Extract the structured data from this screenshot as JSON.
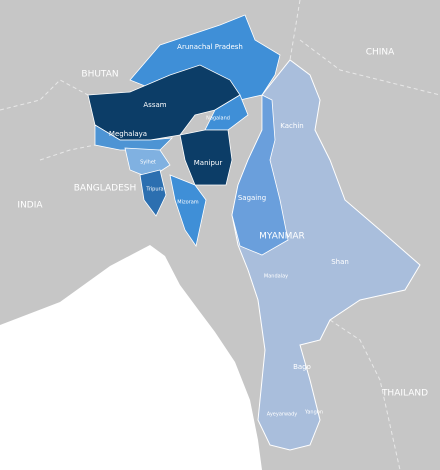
{
  "countries": [
    "CHINA",
    "BHUTAN",
    "BANGLADESH",
    "INDIA",
    "MYANMAR",
    "THAILAND"
  ],
  "regions": [
    "Arunachal Pradesh",
    "Assam",
    "Nagaland",
    "Meghalaya",
    "Manipur",
    "Sylhet",
    "Tripura",
    "Mizoram",
    "Kachin",
    "Sagaing",
    "Shan",
    "Mandalay",
    "Bago",
    "Ayeyarwady",
    "Yangon"
  ]
}
